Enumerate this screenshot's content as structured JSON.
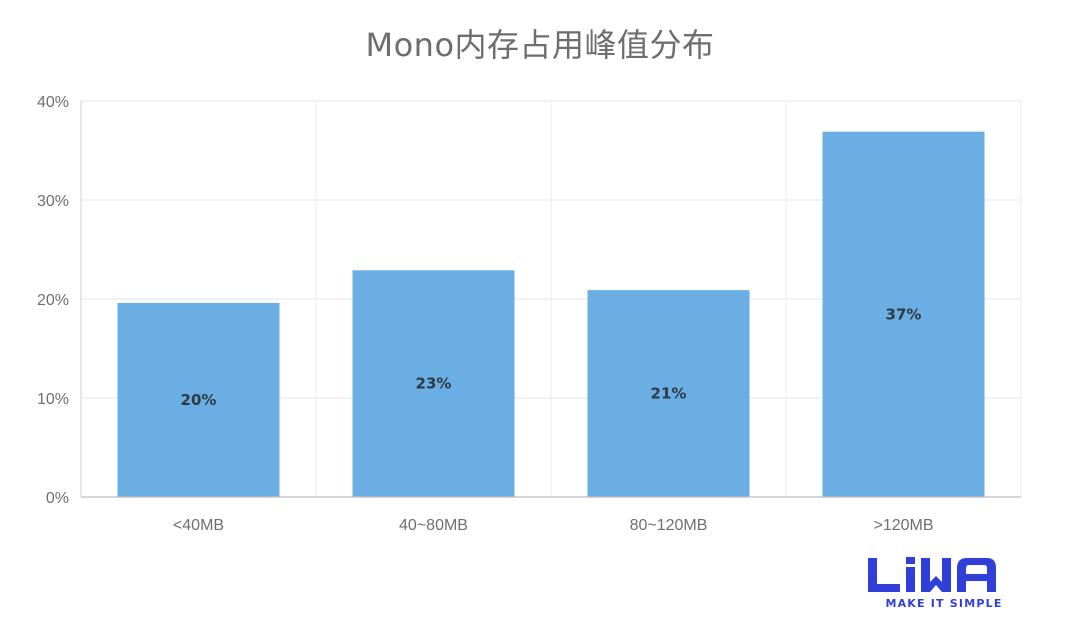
{
  "chart_data": {
    "type": "bar",
    "title": "Mono内存占用峰值分布",
    "categories": [
      "<40MB",
      "40~80MB",
      "80~120MB",
      ">120MB"
    ],
    "values": [
      19.6,
      22.9,
      20.9,
      36.9
    ],
    "data_labels": [
      "20%",
      "23%",
      "21%",
      "37%"
    ],
    "ylim": [
      0,
      40
    ],
    "yticks": [
      0,
      10,
      20,
      30,
      40
    ],
    "ytick_labels": [
      "0%",
      "10%",
      "20%",
      "30%",
      "40%"
    ],
    "xlabel": "",
    "ylabel": "",
    "grid": true,
    "bar_color": "#6aaee3"
  },
  "logo": {
    "text": "LiWA",
    "tagline": "MAKE IT SIMPLE",
    "color": "#2f3fd8"
  }
}
